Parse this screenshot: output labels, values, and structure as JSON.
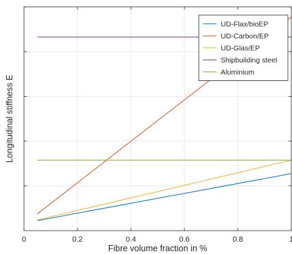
{
  "chart_data": {
    "type": "line",
    "title": "",
    "xlabel": "Fibre volume fraction in %",
    "ylabel": "Longitudinal stiffness E",
    "xlim": [
      0,
      1
    ],
    "ylim": [
      0,
      1
    ],
    "xticks": [
      0,
      0.2,
      0.4,
      0.6,
      0.8,
      1
    ],
    "xtick_labels": [
      "0",
      "0.2",
      "0.4",
      "0.6",
      "0.8",
      "1"
    ],
    "yticks": [
      0.2,
      0.4,
      0.6,
      0.8,
      1
    ],
    "ytick_labels": [],
    "grid": true,
    "legend_position": "top-right",
    "series": [
      {
        "name": "UD-Flax/bioEP",
        "color": "#0072BD",
        "x": [
          0.05,
          1
        ],
        "y": [
          0.045,
          0.255
        ]
      },
      {
        "name": "UD-Carbon/EP",
        "color": "#D95319",
        "x": [
          0.05,
          1
        ],
        "y": [
          0.075,
          0.955
        ]
      },
      {
        "name": "UD-Glas/EP",
        "color": "#EDB120",
        "x": [
          0.05,
          1
        ],
        "y": [
          0.048,
          0.315
        ]
      },
      {
        "name": "Shipbuilding steel",
        "color": "#7E2F8E",
        "x": [
          0.05,
          1
        ],
        "y": [
          0.865,
          0.865
        ]
      },
      {
        "name": "Aluminium",
        "color": "#77AC30",
        "x": [
          0.05,
          1
        ],
        "y": [
          0.315,
          0.315
        ]
      }
    ]
  }
}
